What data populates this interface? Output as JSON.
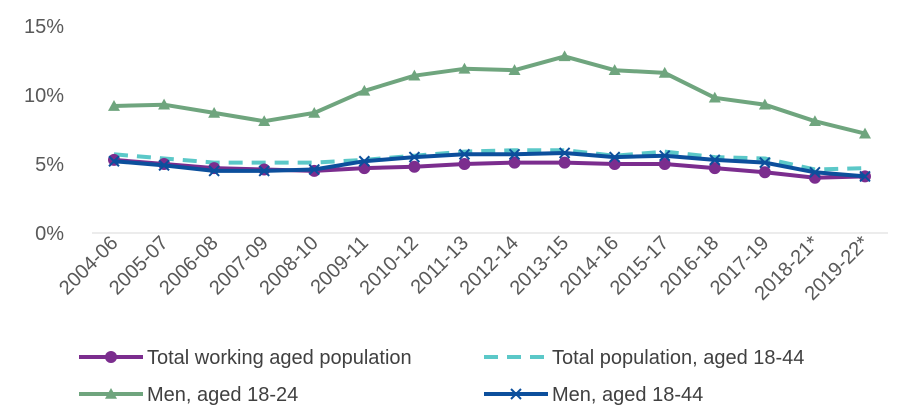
{
  "chart_data": {
    "type": "line",
    "categories": [
      "2004-06",
      "2005-07",
      "2006-08",
      "2007-09",
      "2008-10",
      "2009-11",
      "2010-12",
      "2011-13",
      "2012-14",
      "2013-15",
      "2014-16",
      "2015-17",
      "2016-18",
      "2017-19",
      "2018-21*",
      "2019-22*"
    ],
    "y_ticks": [
      "0%",
      "5%",
      "10%",
      "15%"
    ],
    "ylim": [
      0,
      15
    ],
    "y_unit": "%",
    "grid": false,
    "legend_position": "bottom",
    "series": [
      {
        "name": "Total working aged population",
        "color": "#7b2d8e",
        "style": "solid",
        "marker": "circle",
        "values": [
          5.3,
          5.0,
          4.7,
          4.6,
          4.5,
          4.7,
          4.8,
          5.0,
          5.1,
          5.1,
          5.0,
          5.0,
          4.7,
          4.4,
          4.0,
          4.1
        ]
      },
      {
        "name": "Total population, aged 18-44",
        "color": "#5bc8c8",
        "style": "dashed",
        "marker": "none",
        "values": [
          5.7,
          5.4,
          5.1,
          5.1,
          5.1,
          5.3,
          5.6,
          5.9,
          6.0,
          6.0,
          5.6,
          5.9,
          5.5,
          5.4,
          4.6,
          4.7
        ]
      },
      {
        "name": "Men, aged 18-24",
        "color": "#6fa57e",
        "style": "solid",
        "marker": "triangle",
        "values": [
          9.2,
          9.3,
          8.7,
          8.1,
          8.7,
          10.3,
          11.4,
          11.9,
          11.8,
          12.8,
          11.8,
          11.6,
          9.8,
          9.3,
          8.1,
          7.2
        ]
      },
      {
        "name": "Men, aged 18-44",
        "color": "#0c4f9c",
        "style": "solid",
        "marker": "x",
        "values": [
          5.2,
          4.9,
          4.5,
          4.5,
          4.6,
          5.2,
          5.5,
          5.7,
          5.7,
          5.8,
          5.5,
          5.6,
          5.3,
          5.1,
          4.4,
          4.1
        ]
      }
    ]
  }
}
